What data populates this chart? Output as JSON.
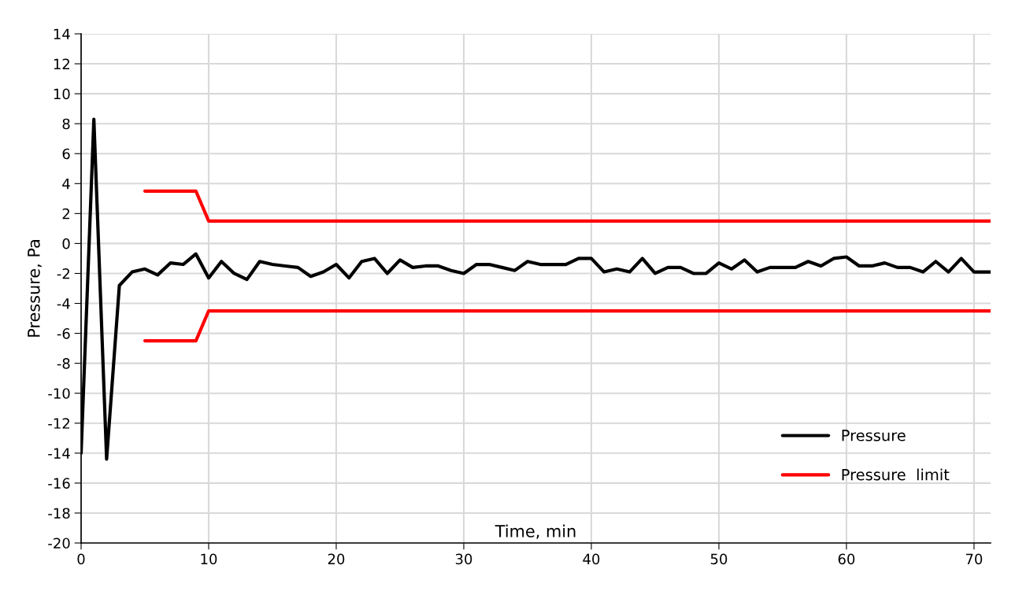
{
  "chart_data": {
    "type": "line",
    "xlabel": "Time, min",
    "ylabel": "Pressure, Pa",
    "xlim": [
      0,
      71.3
    ],
    "xticks": [
      0,
      10,
      20,
      30,
      40,
      50,
      60,
      70
    ],
    "ylim": [
      -20,
      14
    ],
    "yticks": [
      -20,
      -18,
      -16,
      -14,
      -12,
      -10,
      -8,
      -6,
      -4,
      -2,
      0,
      2,
      4,
      6,
      8,
      10,
      12,
      14
    ],
    "grid": true,
    "legend": "bottom right",
    "marker": "none",
    "line_style": "solid",
    "series": [
      {
        "name": "Pressure",
        "color": "#000000",
        "x": [
          0,
          1,
          2,
          3,
          4,
          5,
          6,
          7,
          8,
          9,
          10,
          11,
          12,
          13,
          14,
          15,
          16,
          17,
          18,
          19,
          20,
          21,
          22,
          23,
          24,
          25,
          26,
          27,
          28,
          29,
          30,
          31,
          32,
          33,
          34,
          35,
          36,
          37,
          38,
          39,
          40,
          41,
          42,
          43,
          44,
          45,
          46,
          47,
          48,
          49,
          50,
          51,
          52,
          53,
          54,
          55,
          56,
          57,
          58,
          59,
          60,
          61,
          62,
          63,
          64,
          65,
          66,
          67,
          68,
          69,
          70,
          71.3
        ],
        "values": [
          -14,
          8.3,
          -14.4,
          -2.8,
          -1.9,
          -1.7,
          -2.1,
          -1.3,
          -1.4,
          -0.7,
          -2.3,
          -1.2,
          -2.0,
          -2.4,
          -1.2,
          -1.4,
          -1.5,
          -1.6,
          -2.2,
          -1.9,
          -1.4,
          -2.3,
          -1.2,
          -1.0,
          -2.0,
          -1.1,
          -1.6,
          -1.5,
          -1.5,
          -1.8,
          -2.0,
          -1.4,
          -1.4,
          -1.6,
          -1.8,
          -1.2,
          -1.4,
          -1.4,
          -1.4,
          -1.0,
          -1.0,
          -1.9,
          -1.7,
          -1.9,
          -1.0,
          -2.0,
          -1.6,
          -1.6,
          -2.0,
          -2.0,
          -1.3,
          -1.7,
          -1.1,
          -1.9,
          -1.6,
          -1.6,
          -1.6,
          -1.2,
          -1.5,
          -1.0,
          -0.9,
          -1.5,
          -1.5,
          -1.3,
          -1.6,
          -1.6,
          -1.9,
          -1.2,
          -1.9,
          -1.0,
          -1.9,
          -1.9
        ]
      },
      {
        "name": "Pressure  limit",
        "color": "#ff0000",
        "x": [
          5,
          9,
          10,
          71.3
        ],
        "values": [
          3.5,
          3.5,
          1.5,
          1.5
        ]
      },
      {
        "color": "#ff0000",
        "x": [
          5,
          9,
          10,
          71.3
        ],
        "values": [
          -6.5,
          -6.5,
          -4.5,
          -4.5
        ]
      }
    ]
  }
}
